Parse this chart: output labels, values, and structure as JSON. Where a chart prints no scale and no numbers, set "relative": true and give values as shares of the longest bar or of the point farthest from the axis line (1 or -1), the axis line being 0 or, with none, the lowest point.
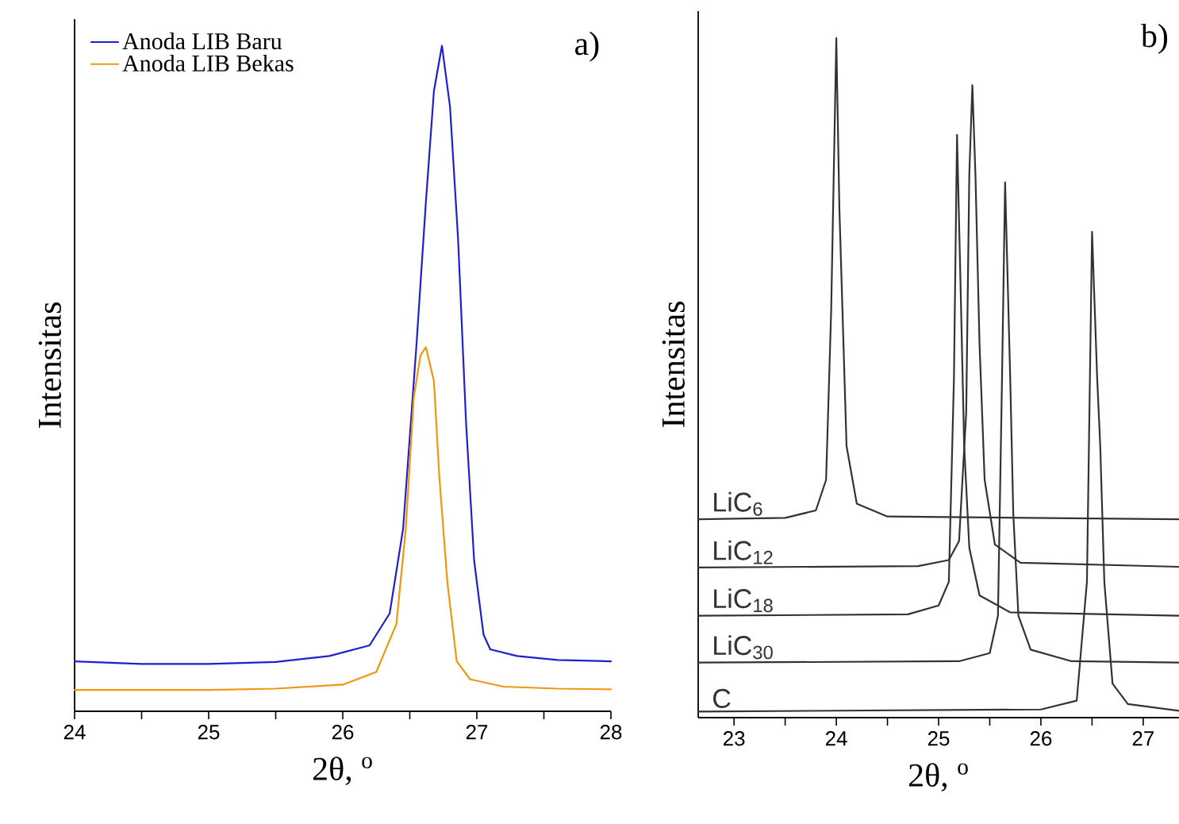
{
  "chart_data": [
    {
      "type": "line",
      "xlabel": "2θ, $^{o}$",
      "ylabel": "Intensitas",
      "annotations": [
        "a)"
      ],
      "relative": true,
      "legend": "top left",
      "xlim": [
        24,
        28
      ],
      "xticks": [
        24,
        {
          "value": 24.5,
          "label": null
        },
        25,
        {
          "value": 25.5,
          "label": null
        },
        26,
        {
          "value": 26.5,
          "label": null
        },
        27,
        {
          "value": 27.5,
          "label": null
        },
        28
      ],
      "series": [
        {
          "name": "Anoda LIB Baru",
          "color": "#1f1fd0",
          "x": [
            24.0,
            24.5,
            25.0,
            25.5,
            25.9,
            26.2,
            26.35,
            26.45,
            26.55,
            26.62,
            26.68,
            26.74,
            26.8,
            26.86,
            26.92,
            26.98,
            27.05,
            27.1,
            27.3,
            27.6,
            28.0
          ],
          "values": [
            0.075,
            0.071,
            0.071,
            0.074,
            0.083,
            0.099,
            0.147,
            0.274,
            0.551,
            0.765,
            0.932,
            1.0,
            0.908,
            0.71,
            0.432,
            0.226,
            0.115,
            0.093,
            0.083,
            0.077,
            0.075
          ]
        },
        {
          "name": "Anoda LIB Bekas",
          "color": "#f0960f",
          "x": [
            24.0,
            25.0,
            25.5,
            26.0,
            26.25,
            26.4,
            26.47,
            26.53,
            26.58,
            26.62,
            26.68,
            26.72,
            26.78,
            26.85,
            26.95,
            27.2,
            27.6,
            28.0
          ],
          "values": [
            0.032,
            0.032,
            0.034,
            0.04,
            0.059,
            0.131,
            0.274,
            0.472,
            0.535,
            0.547,
            0.496,
            0.353,
            0.194,
            0.075,
            0.048,
            0.037,
            0.034,
            0.033
          ]
        }
      ]
    },
    {
      "type": "line",
      "xlabel": "2θ, $^{o}$",
      "ylabel": "Intensitas",
      "annotations": [
        "b)"
      ],
      "relative": true,
      "xlim": [
        22.65,
        27.35
      ],
      "xticks": [
        23,
        {
          "value": 23.5,
          "label": null
        },
        24,
        {
          "value": 24.5,
          "label": null
        },
        25,
        {
          "value": 25.5,
          "label": null
        },
        26,
        {
          "value": 26.5,
          "label": null
        },
        27
      ],
      "series": [
        {
          "name": "LiC$_{6}$",
          "color": "#333333",
          "x": [
            22.65,
            23.5,
            23.8,
            23.9,
            23.95,
            24.0,
            24.03,
            24.06,
            24.1,
            24.2,
            24.5,
            27.35
          ],
          "values": [
            0.292,
            0.294,
            0.305,
            0.35,
            0.6,
            1.0,
            0.75,
            0.6,
            0.4,
            0.315,
            0.296,
            0.292
          ]
        },
        {
          "name": "LiC$_{12}$",
          "color": "#333333",
          "x": [
            22.65,
            24.8,
            25.1,
            25.2,
            25.27,
            25.3,
            25.33,
            25.36,
            25.4,
            25.45,
            25.55,
            25.8,
            27.35
          ],
          "values": [
            0.221,
            0.223,
            0.232,
            0.26,
            0.45,
            0.8,
            0.931,
            0.8,
            0.55,
            0.35,
            0.255,
            0.228,
            0.222
          ]
        },
        {
          "name": "LiC$_{18}$",
          "color": "#333333",
          "x": [
            22.65,
            24.7,
            25.0,
            25.1,
            25.15,
            25.18,
            25.22,
            25.25,
            25.3,
            25.4,
            25.7,
            27.35
          ],
          "values": [
            0.15,
            0.152,
            0.165,
            0.2,
            0.5,
            0.858,
            0.6,
            0.4,
            0.25,
            0.18,
            0.155,
            0.15
          ]
        },
        {
          "name": "LiC$_{30}$",
          "color": "#333333",
          "x": [
            22.65,
            25.2,
            25.5,
            25.58,
            25.62,
            25.65,
            25.7,
            25.73,
            25.78,
            25.9,
            26.3,
            27.35
          ],
          "values": [
            0.081,
            0.083,
            0.095,
            0.15,
            0.5,
            0.788,
            0.5,
            0.3,
            0.15,
            0.1,
            0.083,
            0.081
          ]
        },
        {
          "name": "C",
          "color": "#333333",
          "x": [
            22.65,
            26.0,
            26.35,
            26.45,
            26.5,
            26.55,
            26.58,
            26.62,
            26.7,
            26.85,
            27.35
          ],
          "values": [
            0.009,
            0.012,
            0.025,
            0.2,
            0.715,
            0.5,
            0.4,
            0.2,
            0.05,
            0.02,
            0.01
          ]
        }
      ]
    }
  ]
}
